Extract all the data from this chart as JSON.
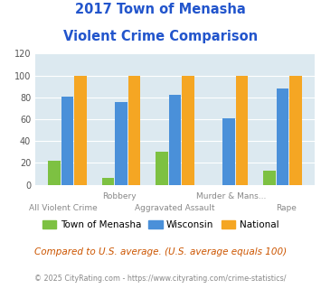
{
  "title_line1": "2017 Town of Menasha",
  "title_line2": "Violent Crime Comparison",
  "title_color": "#2255cc",
  "menasha_values": [
    22,
    6,
    30,
    0,
    13
  ],
  "wisconsin_values": [
    81,
    76,
    82,
    61,
    88
  ],
  "national_values": [
    100,
    100,
    100,
    100,
    100
  ],
  "menasha_color": "#7dc142",
  "wisconsin_color": "#4a90d9",
  "national_color": "#f5a623",
  "ylim": [
    0,
    120
  ],
  "yticks": [
    0,
    20,
    40,
    60,
    80,
    100,
    120
  ],
  "background_color": "#dce9f0",
  "legend_labels": [
    "Town of Menasha",
    "Wisconsin",
    "National"
  ],
  "top_labels": [
    "",
    "Robbery",
    "",
    "Murder & Mans...",
    ""
  ],
  "bottom_labels": [
    "All Violent Crime",
    "",
    "Aggravated Assault",
    "",
    "Rape"
  ],
  "footnote1": "Compared to U.S. average. (U.S. average equals 100)",
  "footnote2": "© 2025 CityRating.com - https://www.cityrating.com/crime-statistics/",
  "footnote1_color": "#cc5500",
  "footnote2_color": "#888888"
}
